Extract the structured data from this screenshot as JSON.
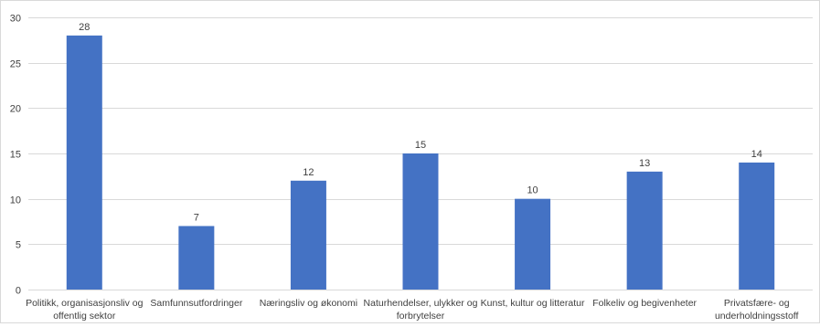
{
  "chart_data": {
    "type": "bar",
    "title": "",
    "xlabel": "",
    "ylabel": "",
    "ylim": [
      0,
      30
    ],
    "yticks": [
      0,
      5,
      10,
      15,
      20,
      25,
      30
    ],
    "grid": true,
    "legend": "none",
    "categories": [
      [
        "Politikk, organisasjonsliv og",
        "offentlig sektor"
      ],
      [
        "Samfunnsutfordringer"
      ],
      [
        "Næringsliv og økonomi"
      ],
      [
        "Naturhendelser, ulykker og",
        "forbrytelser"
      ],
      [
        "Kunst, kultur og litteratur"
      ],
      [
        "Folkeliv og begivenheter"
      ],
      [
        "Privatsfære- og",
        "underholdningsstoff"
      ]
    ],
    "values": [
      28,
      7,
      12,
      15,
      10,
      13,
      14
    ],
    "colors": {
      "bar": "#4472c4",
      "grid": "#d9d9d9",
      "text": "#404040"
    }
  }
}
